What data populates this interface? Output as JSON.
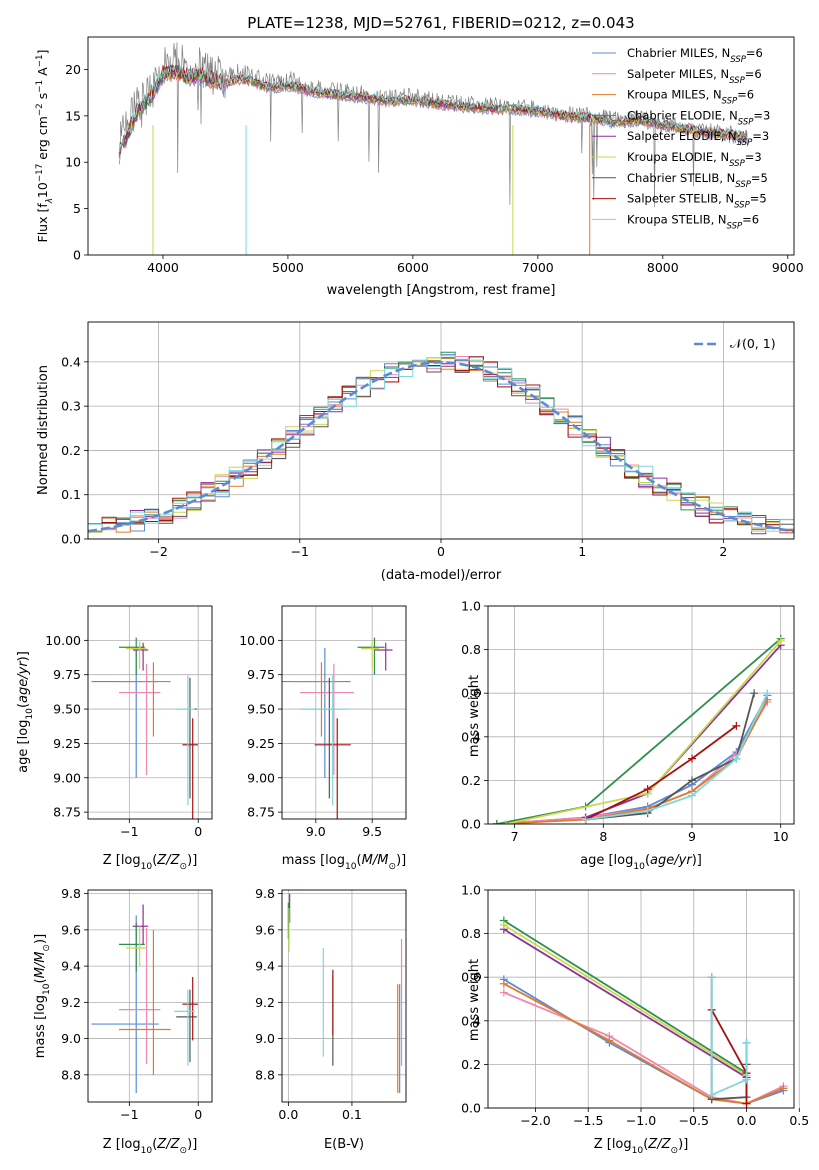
{
  "title": "PLATE=1238, MJD=52761, FIBERID=0212, z=0.043",
  "palette": {
    "chabrier_miles": "#5b8bd6",
    "salpeter_miles": "#ef88b0",
    "kroupa_miles": "#e07b2a",
    "chabrier_elodie": "#2f8f4e",
    "salpeter_elodie": "#8e2f9e",
    "kroupa_elodie": "#c9d84b",
    "chabrier_stelib": "#555555",
    "salpeter_stelib": "#a81010",
    "kroupa_stelib": "#7fd6dc",
    "data": "#808080",
    "gaussian": "#5b8bd6"
  },
  "chart_data": [
    {
      "id": "spectrum",
      "type": "line",
      "title": "PLATE=1238, MJD=52761, FIBERID=0212, z=0.043",
      "xlabel": "wavelength [Angstrom, rest frame]",
      "ylabel": "Flux [fλ10⁻¹⁷ erg cm⁻² s⁻¹ A⁻¹]",
      "xlim": [
        3400,
        9050
      ],
      "ylim": [
        0,
        23.5
      ],
      "xticks": [
        4000,
        5000,
        6000,
        7000,
        8000,
        9000
      ],
      "yticks": [
        0,
        5,
        10,
        15,
        20
      ],
      "grid": false,
      "legend_position": "top-right",
      "x": [
        3650,
        3700,
        3800,
        3900,
        4000,
        4100,
        4200,
        4300,
        4400,
        4500,
        4600,
        4700,
        4800,
        4900,
        5000,
        5200,
        5400,
        5600,
        5800,
        6000,
        6200,
        6400,
        6600,
        6800,
        7000,
        7200,
        7400,
        7600,
        7800,
        8000,
        8200,
        8400,
        8600,
        8680
      ],
      "model_y": [
        11.5,
        12.5,
        15.5,
        17.0,
        19.5,
        19.8,
        19.2,
        19.3,
        18.8,
        18.5,
        19.0,
        18.8,
        18.2,
        18.0,
        18.3,
        17.6,
        17.2,
        17.0,
        16.6,
        16.7,
        16.3,
        16.0,
        15.8,
        15.7,
        15.5,
        15.0,
        14.8,
        14.3,
        14.5,
        14.0,
        13.5,
        13.1,
        12.9,
        12.7
      ],
      "data_y": [
        12.0,
        13.5,
        16.5,
        17.5,
        20.5,
        21.0,
        20.5,
        20.2,
        19.5,
        19.0,
        19.8,
        19.3,
        18.8,
        18.5,
        18.9,
        18.0,
        17.6,
        17.3,
        16.9,
        17.0,
        16.5,
        16.3,
        16.0,
        15.9,
        15.7,
        15.2,
        15.0,
        14.5,
        14.6,
        14.1,
        13.6,
        13.2,
        12.8,
        12.6
      ],
      "series": [
        {
          "name": "Chabrier MILES, N<sub>SSP</sub>=6",
          "label": "Chabrier MILES, N",
          "sub": "SSP",
          "tail": "=6",
          "color": "#5b8bd6"
        },
        {
          "name": "Salpeter MILES, N<sub>SSP</sub>=6",
          "label": "Salpeter MILES, N",
          "sub": "SSP",
          "tail": "=6",
          "color": "#ef88b0"
        },
        {
          "name": "Kroupa MILES, N<sub>SSP</sub>=6",
          "label": "Kroupa MILES, N",
          "sub": "SSP",
          "tail": "=6",
          "color": "#e07b2a"
        },
        {
          "name": "Chabrier ELODIE, N<sub>SSP</sub>=3",
          "label": "Chabrier ELODIE, N",
          "sub": "SSP",
          "tail": "=3",
          "color": "#2f8f4e"
        },
        {
          "name": "Salpeter ELODIE, N<sub>SSP</sub>=3",
          "label": "Salpeter ELODIE, N",
          "sub": "SSP",
          "tail": "=3",
          "color": "#8e2f9e"
        },
        {
          "name": "Kroupa ELODIE, N<sub>SSP</sub>=3",
          "label": "Kroupa ELODIE, N",
          "sub": "SSP",
          "tail": "=3",
          "color": "#c9d84b"
        },
        {
          "name": "Chabrier STELIB, N<sub>SSP</sub>=5",
          "label": "Chabrier STELIB, N",
          "sub": "SSP",
          "tail": "=5",
          "color": "#555555"
        },
        {
          "name": "Salpeter STELIB, N<sub>SSP</sub>=5",
          "label": "Salpeter STELIB, N",
          "sub": "SSP",
          "tail": "=5",
          "color": "#a81010"
        },
        {
          "name": "Kroupa STELIB, N<sub>SSP</sub>=6",
          "label": "Kroupa STELIB, N",
          "sub": "SSP",
          "tail": "=6",
          "color": "#7fd6dc"
        }
      ],
      "drops": [
        {
          "x": 3920,
          "color": "#c9d84b"
        },
        {
          "x": 4665,
          "color": "#7fd6dc"
        },
        {
          "x": 6800,
          "color": "#c9d84b"
        },
        {
          "x": 7415,
          "color": "#e07b2a"
        }
      ]
    },
    {
      "id": "residuals",
      "type": "line",
      "xlabel": "(data-model)/error",
      "ylabel": "Normed distribution",
      "xlim": [
        -2.5,
        2.5
      ],
      "ylim": [
        0,
        0.49
      ],
      "xticks": [
        -2,
        -1,
        0,
        1,
        2
      ],
      "yticks": [
        0.0,
        0.1,
        0.2,
        0.3,
        0.4
      ],
      "grid": true,
      "legend_position": "top-right",
      "legend_label": "𝒩(0, 1)",
      "bin_width": 0.1
    },
    {
      "id": "age-vs-Z",
      "type": "scatter",
      "xlabel": "Z [log₁₀(Z/Z⊙)]",
      "ylabel": "age  [log₁₀(age/yr)]",
      "xlim": [
        -1.6,
        0.2
      ],
      "ylim": [
        8.7,
        10.25
      ],
      "xticks": [
        -1,
        0
      ],
      "yticks": [
        8.75,
        9.0,
        9.25,
        9.5,
        9.75,
        10.0
      ],
      "grid": true
    },
    {
      "id": "age-vs-mass",
      "type": "scatter",
      "xlabel": "mass [log₁₀(M/M⊙)]",
      "xlim": [
        8.7,
        9.8
      ],
      "ylim": [
        8.7,
        10.25
      ],
      "xticks": [
        9.0,
        9.5
      ],
      "yticks": [
        8.75,
        9.0,
        9.25,
        9.5,
        9.75,
        10.0
      ],
      "grid": true
    },
    {
      "id": "weight-vs-age",
      "type": "line",
      "xlabel": "age  [log₁₀(age/yr)]",
      "ylabel": "mass weight",
      "xlim": [
        6.7,
        10.15
      ],
      "ylim": [
        0,
        1.0
      ],
      "xticks": [
        7,
        8,
        9,
        10
      ],
      "yticks": [
        0.0,
        0.2,
        0.4,
        0.6,
        0.8,
        1.0
      ],
      "grid": true,
      "series": [
        {
          "key": "chabrier_miles",
          "x": [
            6.8,
            7.8,
            8.5,
            9.0,
            9.5,
            9.85
          ],
          "y": [
            0.0,
            0.03,
            0.08,
            0.18,
            0.33,
            0.59
          ]
        },
        {
          "key": "salpeter_miles",
          "x": [
            6.8,
            7.8,
            8.5,
            9.0,
            9.5,
            9.85
          ],
          "y": [
            0.0,
            0.03,
            0.07,
            0.15,
            0.32,
            0.56
          ]
        },
        {
          "key": "kroupa_miles",
          "x": [
            6.8,
            7.8,
            8.5,
            9.0,
            9.5,
            9.85
          ],
          "y": [
            0.0,
            0.02,
            0.07,
            0.15,
            0.3,
            0.57
          ]
        },
        {
          "key": "chabrier_elodie",
          "x": [
            6.8,
            7.8,
            10.0
          ],
          "y": [
            0.0,
            0.08,
            0.85
          ]
        },
        {
          "key": "salpeter_elodie",
          "x": [
            7.8,
            8.5,
            10.0
          ],
          "y": [
            0.03,
            0.14,
            0.82
          ]
        },
        {
          "key": "kroupa_elodie",
          "x": [
            6.9,
            8.5,
            10.0
          ],
          "y": [
            0.0,
            0.14,
            0.84
          ]
        },
        {
          "key": "chabrier_stelib",
          "x": [
            7.8,
            8.5,
            9.0,
            9.5,
            9.7
          ],
          "y": [
            0.02,
            0.05,
            0.2,
            0.3,
            0.6
          ]
        },
        {
          "key": "salpeter_stelib",
          "x": [
            7.8,
            8.5,
            9.0,
            9.5
          ],
          "y": [
            0.02,
            0.16,
            0.3,
            0.45
          ]
        },
        {
          "key": "kroupa_stelib",
          "x": [
            7.8,
            8.5,
            9.0,
            9.5,
            9.85
          ],
          "y": [
            0.02,
            0.06,
            0.13,
            0.3,
            0.6
          ]
        }
      ]
    },
    {
      "id": "mass-vs-Z",
      "type": "scatter",
      "xlabel": "Z [log₁₀(Z/Z⊙)]",
      "ylabel": "mass [log₁₀(M/M⊙)]",
      "xlim": [
        -1.6,
        0.2
      ],
      "ylim": [
        8.65,
        9.82
      ],
      "xticks": [
        -1,
        0
      ],
      "yticks": [
        8.8,
        9.0,
        9.2,
        9.4,
        9.6,
        9.8
      ],
      "grid": true
    },
    {
      "id": "mass-vs-ebv",
      "type": "scatter",
      "xlabel": "E(B-V)",
      "xlim": [
        -0.01,
        0.185
      ],
      "ylim": [
        8.65,
        9.82
      ],
      "xticks": [
        0.0,
        0.1
      ],
      "yticks": [
        8.8,
        9.0,
        9.2,
        9.4,
        9.6,
        9.8
      ],
      "grid": true
    },
    {
      "id": "weight-vs-Z",
      "type": "line",
      "xlabel": "Z [log₁₀(Z/Z⊙)]",
      "ylabel": "mass weight",
      "xlim": [
        -2.45,
        0.45
      ],
      "ylim": [
        0,
        1.0
      ],
      "xticks": [
        -2.0,
        -1.5,
        -1.0,
        -0.5,
        0.0,
        0.5
      ],
      "yticks": [
        0.0,
        0.2,
        0.4,
        0.6,
        0.8,
        1.0
      ],
      "grid": true,
      "series": [
        {
          "key": "chabrier_miles",
          "x": [
            -2.3,
            -1.3,
            -0.33,
            0.0,
            0.35
          ],
          "y": [
            0.59,
            0.3,
            0.04,
            0.02,
            0.08
          ]
        },
        {
          "key": "salpeter_miles",
          "x": [
            -2.3,
            -1.3,
            -0.33,
            0.0,
            0.35
          ],
          "y": [
            0.53,
            0.33,
            0.05,
            0.02,
            0.1
          ]
        },
        {
          "key": "kroupa_miles",
          "x": [
            -2.3,
            -1.3,
            -0.33,
            0.0,
            0.35
          ],
          "y": [
            0.57,
            0.31,
            0.04,
            0.02,
            0.09
          ]
        },
        {
          "key": "chabrier_elodie",
          "x": [
            -2.3,
            0.0
          ],
          "y": [
            0.86,
            0.16
          ]
        },
        {
          "key": "salpeter_elodie",
          "x": [
            -2.3,
            0.0
          ],
          "y": [
            0.82,
            0.14
          ]
        },
        {
          "key": "kroupa_elodie",
          "x": [
            -2.3,
            0.0
          ],
          "y": [
            0.84,
            0.15
          ]
        },
        {
          "key": "chabrier_stelib",
          "x": [
            -0.33,
            -0.33,
            0.0,
            0.0
          ],
          "y": [
            0.6,
            0.04,
            0.05,
            0.2
          ]
        },
        {
          "key": "salpeter_stelib",
          "x": [
            -0.33,
            0.0,
            0.0,
            0.0
          ],
          "y": [
            0.45,
            0.16,
            0.3,
            0.02
          ]
        },
        {
          "key": "kroupa_stelib",
          "x": [
            -0.33,
            -0.33,
            0.0,
            0.0
          ],
          "y": [
            0.6,
            0.06,
            0.13,
            0.3
          ]
        }
      ]
    }
  ],
  "ssp_points": {
    "note_fields": [
      "Z",
      "age",
      "mass",
      "ebv"
    ],
    "items": [
      {
        "key": "chabrier_miles",
        "Z": -0.9,
        "Zerr": 0.65,
        "age": 9.7,
        "ageerr": 0.7,
        "mass": 9.08,
        "masserr": 0.38,
        "merr_Z": 0.6,
        "ebv": 0.175,
        "ebv_mass": 9.0,
        "ebv_merr": 0.3
      },
      {
        "key": "salpeter_miles",
        "Z": -0.75,
        "Zerr": 0.4,
        "age": 9.62,
        "ageerr": 0.6,
        "mass": 9.16,
        "masserr": 0.3,
        "merr_Z": 0.45,
        "ebv": 0.178,
        "ebv_mass": 9.2,
        "ebv_merr": 0.35
      },
      {
        "key": "kroupa_miles",
        "Z": -0.65,
        "Zerr": 0.5,
        "age": 9.7,
        "ageerr": 0.4,
        "mass": 9.05,
        "masserr": 0.25,
        "merr_Z": 0.55,
        "ebv": 0.172,
        "ebv_mass": 9.0,
        "ebv_merr": 0.3
      },
      {
        "key": "chabrier_elodie",
        "Z": -0.9,
        "Zerr": 0.25,
        "age": 9.95,
        "ageerr": 0.2,
        "mass": 9.52,
        "masserr": 0.15,
        "merr_Z": 0.12,
        "ebv": 0.0,
        "ebv_mass": 9.65,
        "ebv_merr": 0.1
      },
      {
        "key": "salpeter_elodie",
        "Z": -0.8,
        "Zerr": 0.15,
        "age": 9.93,
        "ageerr": 0.15,
        "mass": 9.62,
        "masserr": 0.1,
        "merr_Z": 0.12,
        "ebv": 0.002,
        "ebv_mass": 9.72,
        "ebv_merr": 0.08
      },
      {
        "key": "kroupa_elodie",
        "Z": -0.85,
        "Zerr": 0.2,
        "age": 9.94,
        "ageerr": 0.15,
        "mass": 9.5,
        "masserr": 0.1,
        "merr_Z": 0.12,
        "ebv": 0.001,
        "ebv_mass": 9.6,
        "ebv_merr": 0.12
      },
      {
        "key": "chabrier_stelib",
        "Z": -0.12,
        "Zerr": 0.2,
        "age": 9.5,
        "ageerr": 0.65,
        "mass": 9.12,
        "masserr": 0.25,
        "merr_Z": 0.15,
        "ebv": 0.07,
        "ebv_mass": 9.1,
        "ebv_merr": 0.25
      },
      {
        "key": "salpeter_stelib",
        "Z": -0.08,
        "Zerr": 0.15,
        "age": 9.24,
        "ageerr": 0.55,
        "mass": 9.19,
        "masserr": 0.2,
        "merr_Z": 0.15,
        "ebv": 0.07,
        "ebv_mass": 9.2,
        "ebv_merr": 0.18
      },
      {
        "key": "kroupa_stelib",
        "Z": -0.15,
        "Zerr": 0.2,
        "age": 9.5,
        "ageerr": 0.7,
        "mass": 9.15,
        "masserr": 0.3,
        "merr_Z": 0.12,
        "ebv": 0.055,
        "ebv_mass": 9.2,
        "ebv_merr": 0.3
      }
    ]
  }
}
